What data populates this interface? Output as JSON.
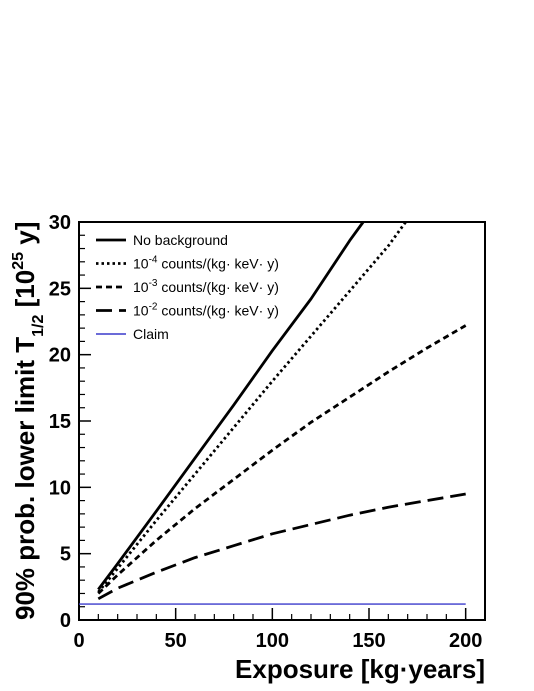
{
  "chart_data": {
    "type": "line",
    "xlabel": "Exposure [kg·years]",
    "ylabel": {
      "prefix": "90% prob. lower limit T",
      "subscript": "1/2",
      "unit_open": " [10",
      "unit_exp": "25",
      "unit_close": " y]"
    },
    "xlim": [
      0,
      210
    ],
    "ylim": [
      0,
      30
    ],
    "xticks": [
      0,
      50,
      100,
      150,
      200
    ],
    "yticks": [
      0,
      5,
      10,
      15,
      20,
      25,
      30
    ],
    "grid": false,
    "legend_position": "top-left",
    "series": [
      {
        "name": "No background",
        "style": "solid",
        "color": "#000000",
        "x": [
          10,
          20,
          40,
          60,
          80,
          100,
          120,
          140,
          147
        ],
        "y": [
          2.3,
          4.25,
          8.2,
          12.2,
          16.2,
          20.3,
          24.2,
          28.6,
          30
        ]
      },
      {
        "name_parts": {
          "pre": "10",
          "exp": "-4",
          "post": " counts/(kg· keV· y)"
        },
        "style": "dotted",
        "color": "#000000",
        "x": [
          10,
          20,
          40,
          60,
          80,
          100,
          120,
          140,
          160,
          169
        ],
        "y": [
          2.1,
          3.9,
          7.5,
          11.0,
          14.5,
          18.0,
          21.4,
          24.8,
          28.2,
          30
        ]
      },
      {
        "name_parts": {
          "pre": "10",
          "exp": "-3",
          "post": " counts/(kg· keV· y)"
        },
        "style": "dashed",
        "color": "#000000",
        "x": [
          10,
          20,
          40,
          60,
          80,
          100,
          120,
          140,
          160,
          180,
          200
        ],
        "y": [
          2.0,
          3.4,
          6.0,
          8.4,
          10.6,
          12.8,
          14.9,
          16.8,
          18.7,
          20.5,
          22.2
        ]
      },
      {
        "name_parts": {
          "pre": "10",
          "exp": "-2",
          "post": " counts/(kg· keV· y)"
        },
        "style": "longdash",
        "color": "#000000",
        "x": [
          10,
          20,
          40,
          60,
          80,
          100,
          120,
          140,
          160,
          180,
          200
        ],
        "y": [
          1.6,
          2.4,
          3.6,
          4.7,
          5.6,
          6.5,
          7.2,
          7.9,
          8.5,
          9.0,
          9.5
        ]
      },
      {
        "name": "Claim",
        "style": "solid",
        "color": "#3a3acc",
        "x": [
          0,
          200
        ],
        "y": [
          1.2,
          1.2
        ]
      }
    ]
  }
}
